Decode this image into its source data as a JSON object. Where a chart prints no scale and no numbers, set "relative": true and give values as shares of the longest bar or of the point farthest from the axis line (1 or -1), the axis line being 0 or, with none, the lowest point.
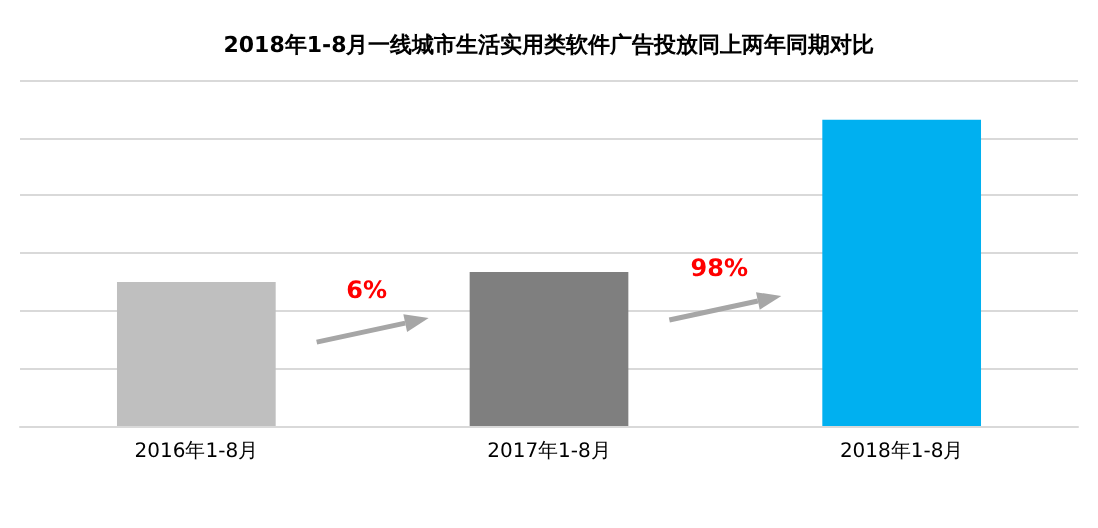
{
  "chart_data": {
    "type": "bar",
    "title": "2018年1-8月一线城市生活实用类软件广告投放同上两年同期对比",
    "categories": [
      "2016年1-8月",
      "2017年1-8月",
      "2018年1-8月"
    ],
    "values": [
      0.47,
      0.503,
      1
    ],
    "colors": [
      "#bfbfbf",
      "#7f7f7f",
      "#00b0f0"
    ],
    "relative": true,
    "grid": "y",
    "annotations": [
      "6%",
      "98%"
    ]
  }
}
